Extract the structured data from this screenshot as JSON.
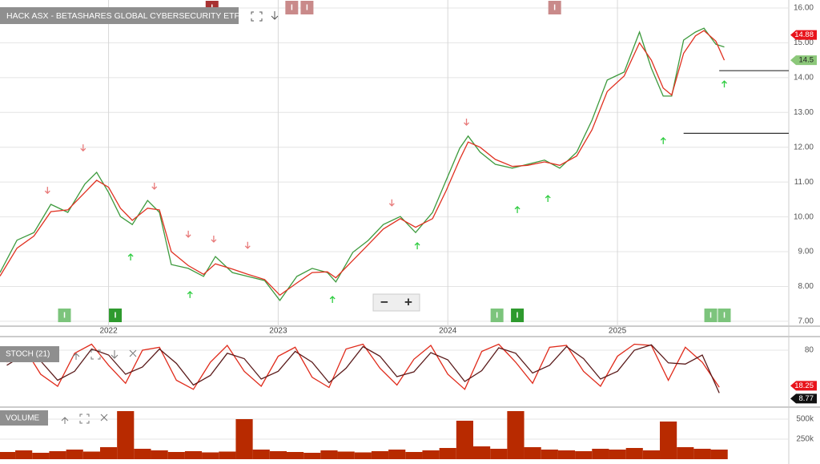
{
  "chart_data": [
    {
      "type": "line",
      "title": "HACK ASX - BETASHARES GLOBAL CYBERSECURITY ETF",
      "x": [
        2021.36,
        2021.46,
        2021.56,
        2021.66,
        2021.76,
        2021.86,
        2021.93,
        2022.0,
        2022.07,
        2022.14,
        2022.23,
        2022.3,
        2022.37,
        2022.47,
        2022.56,
        2022.63,
        2022.73,
        2022.82,
        2022.92,
        2023.01,
        2023.11,
        2023.2,
        2023.29,
        2023.34,
        2023.44,
        2023.53,
        2023.62,
        2023.72,
        2023.81,
        2023.91,
        2023.99,
        2024.07,
        2024.12,
        2024.19,
        2024.28,
        2024.38,
        2024.47,
        2024.57,
        2024.66,
        2024.76,
        2024.85,
        2024.94,
        2025.04,
        2025.13,
        2025.2,
        2025.27,
        2025.32,
        2025.39,
        2025.46,
        2025.51,
        2025.58,
        2025.63
      ],
      "series": [
        {
          "color": "#3d9a3d",
          "badge_color": "#e8141c",
          "values": [
            8.4,
            9.33,
            9.55,
            10.36,
            10.13,
            10.94,
            11.28,
            10.7,
            10.01,
            9.78,
            10.47,
            10.13,
            8.63,
            8.52,
            8.29,
            8.86,
            8.4,
            8.29,
            8.17,
            7.6,
            8.29,
            8.52,
            8.4,
            8.13,
            8.98,
            9.32,
            9.78,
            10.01,
            9.55,
            10.13,
            11.05,
            11.97,
            12.32,
            11.86,
            11.51,
            11.4,
            11.51,
            11.63,
            11.4,
            11.86,
            12.78,
            13.93,
            14.16,
            15.31,
            14.27,
            13.47,
            13.47,
            15.08,
            15.31,
            15.42,
            14.96,
            14.88
          ]
        },
        {
          "color": "#e03020",
          "badge_color": "#8cc87a",
          "values": [
            8.3,
            9.1,
            9.45,
            10.15,
            10.2,
            10.7,
            11.05,
            10.85,
            10.25,
            9.9,
            10.25,
            10.2,
            9.0,
            8.6,
            8.35,
            8.65,
            8.5,
            8.35,
            8.2,
            7.75,
            8.1,
            8.4,
            8.42,
            8.25,
            8.75,
            9.2,
            9.65,
            9.95,
            9.7,
            9.95,
            10.75,
            11.65,
            12.15,
            12.0,
            11.65,
            11.45,
            11.48,
            11.58,
            11.48,
            11.75,
            12.5,
            13.6,
            14.05,
            15.0,
            14.5,
            13.7,
            13.5,
            14.7,
            15.2,
            15.35,
            15.05,
            14.5
          ]
        }
      ],
      "xlim": [
        2021.36,
        2026.01
      ],
      "xticks": [
        2022,
        2023,
        2024,
        2025
      ],
      "ylim": [
        6.86,
        16.23
      ],
      "yticks": [
        {
          "value": 7,
          "label": "7.00"
        },
        {
          "value": 8,
          "label": "8.00"
        },
        {
          "value": 9,
          "label": "9.00"
        },
        {
          "value": 10,
          "label": "10.00"
        },
        {
          "value": 11,
          "label": "11.00"
        },
        {
          "value": 12,
          "label": "12.00"
        },
        {
          "value": 13,
          "label": "13.00"
        },
        {
          "value": 14,
          "label": "14.00"
        },
        {
          "value": 15,
          "label": "15.00"
        },
        {
          "value": 16,
          "label": "16.00"
        }
      ],
      "grid": true,
      "levels": [
        {
          "x": 2025.6,
          "y": 14.2
        },
        {
          "x": 2025.39,
          "y": 12.4
        }
      ],
      "markers": [
        {
          "symbol": "down",
          "color": "#e87a7a",
          "x": [
            2021.64,
            2021.85,
            2022.27,
            2022.47,
            2022.62,
            2022.82,
            2023.67,
            2024.11
          ],
          "y": [
            10.77,
            11.99,
            10.89,
            9.51,
            9.37,
            9.19,
            10.41,
            12.73
          ]
        },
        {
          "symbol": "up",
          "color": "#2ecc40",
          "x": [
            2022.13,
            2022.48,
            2023.32,
            2023.82,
            2024.41,
            2024.59,
            2025.27,
            2025.63
          ],
          "y": [
            8.84,
            7.76,
            7.62,
            9.16,
            10.2,
            10.52,
            12.18,
            13.81
          ]
        }
      ],
      "events": [
        {
          "label": "I",
          "x": 2022.61,
          "position": "top",
          "color": "#a83232"
        },
        {
          "label": "I",
          "x": 2023.08,
          "position": "top",
          "color": "#c98a8a"
        },
        {
          "label": "I",
          "x": 2023.17,
          "position": "top",
          "color": "#c98a8a"
        },
        {
          "label": "I",
          "x": 2024.63,
          "position": "top",
          "color": "#c98a8a"
        },
        {
          "label": "I",
          "x": 2021.74,
          "position": "bottom",
          "color": "#7cc47c"
        },
        {
          "label": "I",
          "x": 2022.04,
          "position": "bottom",
          "color": "#2e9a2e"
        },
        {
          "label": "I",
          "x": 2024.29,
          "position": "bottom",
          "color": "#7cc47c"
        },
        {
          "label": "I",
          "x": 2024.41,
          "position": "bottom",
          "color": "#2e9a2e"
        },
        {
          "label": "I",
          "x": 2025.55,
          "position": "bottom",
          "color": "#7cc47c"
        },
        {
          "label": "I",
          "x": 2025.63,
          "position": "bottom",
          "color": "#7cc47c"
        }
      ],
      "controls": {
        "zoom_out": "−",
        "zoom_in": "+"
      }
    },
    {
      "type": "line",
      "title": "STOCH (21)",
      "x": [
        2021.4,
        2021.5,
        2021.6,
        2021.7,
        2021.8,
        2021.9,
        2022.0,
        2022.1,
        2022.2,
        2022.3,
        2022.4,
        2022.5,
        2022.6,
        2022.7,
        2022.8,
        2022.9,
        2023.0,
        2023.1,
        2023.2,
        2023.3,
        2023.4,
        2023.5,
        2023.6,
        2023.7,
        2023.8,
        2023.9,
        2024.0,
        2024.1,
        2024.2,
        2024.3,
        2024.4,
        2024.5,
        2024.6,
        2024.7,
        2024.8,
        2024.9,
        2025.0,
        2025.1,
        2025.2,
        2025.3,
        2025.4,
        2025.5,
        2025.6
      ],
      "series": [
        {
          "color": "#e02a1a",
          "badge_color": "#e8141c",
          "values": [
            60,
            85,
            40,
            20,
            75,
            90,
            55,
            25,
            80,
            85,
            30,
            15,
            60,
            88,
            45,
            20,
            70,
            85,
            35,
            18,
            82,
            90,
            50,
            22,
            65,
            88,
            40,
            15,
            78,
            90,
            60,
            25,
            85,
            88,
            45,
            20,
            70,
            90,
            88,
            30,
            85,
            60,
            18.25
          ]
        },
        {
          "color": "#5a1a1a",
          "badge_color": "#111111",
          "values": [
            55,
            72,
            62,
            30,
            45,
            82,
            72,
            40,
            52,
            82,
            58,
            22,
            38,
            75,
            66,
            32,
            45,
            78,
            60,
            26,
            50,
            86,
            70,
            36,
            44,
            76,
            64,
            28,
            46,
            84,
            75,
            42,
            55,
            86,
            66,
            32,
            45,
            80,
            89,
            59,
            57,
            72,
            8.77
          ]
        }
      ],
      "xlim": [
        2021.36,
        2026.01
      ],
      "ylim": [
        0,
        100
      ],
      "yticks": [
        80
      ],
      "grid": true
    },
    {
      "type": "bar",
      "title": "VOLUME",
      "color": "#b82a00",
      "x": [
        2021.4,
        2021.5,
        2021.6,
        2021.7,
        2021.8,
        2021.9,
        2022.0,
        2022.1,
        2022.2,
        2022.3,
        2022.4,
        2022.5,
        2022.6,
        2022.7,
        2022.8,
        2022.9,
        2023.0,
        2023.1,
        2023.2,
        2023.3,
        2023.4,
        2023.5,
        2023.6,
        2023.7,
        2023.8,
        2023.9,
        2024.0,
        2024.1,
        2024.2,
        2024.3,
        2024.4,
        2024.5,
        2024.6,
        2024.7,
        2024.8,
        2024.9,
        2025.0,
        2025.1,
        2025.2,
        2025.3,
        2025.4,
        2025.5,
        2025.6
      ],
      "values": [
        90000,
        110000,
        80000,
        100000,
        120000,
        95000,
        150000,
        600000,
        130000,
        110000,
        90000,
        100000,
        85000,
        95000,
        500000,
        120000,
        100000,
        90000,
        80000,
        110000,
        95000,
        85000,
        100000,
        120000,
        90000,
        110000,
        140000,
        480000,
        160000,
        130000,
        600000,
        150000,
        120000,
        110000,
        100000,
        130000,
        120000,
        140000,
        110000,
        470000,
        150000,
        130000,
        120000
      ],
      "xlim": [
        2021.36,
        2026.01
      ],
      "ylim": [
        0,
        610000
      ],
      "yticks": [
        {
          "value": 500000,
          "label": "500k"
        },
        {
          "value": 250000,
          "label": "250k"
        }
      ],
      "grid": true
    }
  ]
}
